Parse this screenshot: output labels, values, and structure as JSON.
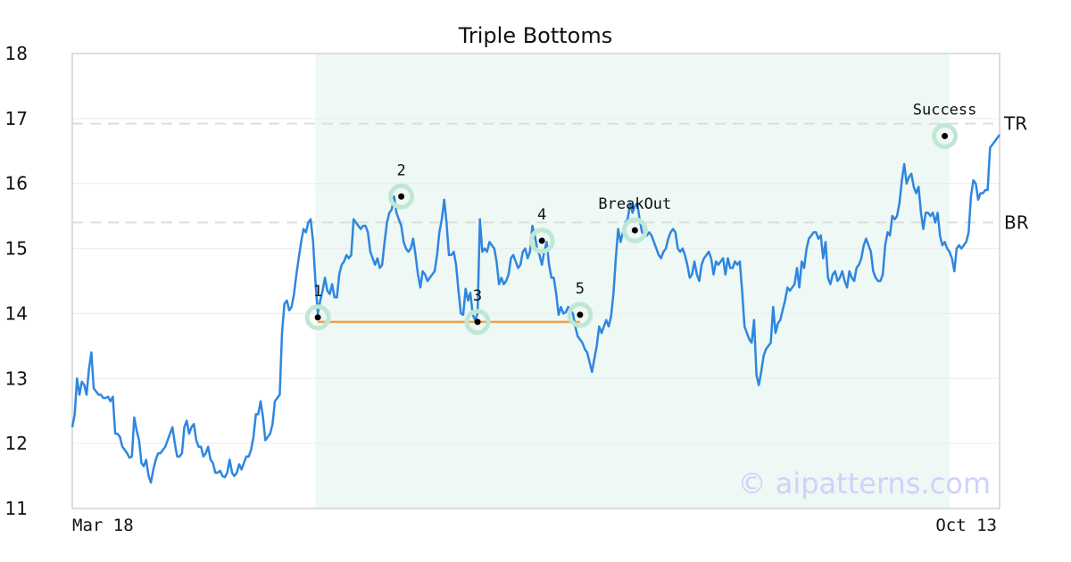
{
  "chart_data": {
    "type": "line",
    "title": "Triple Bottoms",
    "xlabel": "",
    "ylabel": "",
    "x_start_label": "Mar 18",
    "x_end_label": "Oct 13",
    "ylim": [
      11,
      18
    ],
    "yticks": [
      11,
      12,
      13,
      14,
      15,
      16,
      17,
      18
    ],
    "grid": true,
    "series": [
      {
        "values": [
          12.25,
          12.45,
          13.0,
          12.75,
          12.95,
          12.9,
          12.75,
          13.15,
          13.4,
          12.85,
          12.8,
          12.75,
          12.75,
          12.7,
          12.7,
          12.72,
          12.65,
          12.72,
          12.15,
          12.15,
          12.1,
          11.95,
          11.9,
          11.85,
          11.78,
          11.8,
          12.4,
          12.2,
          12.05,
          11.7,
          11.65,
          11.75,
          11.5,
          11.4,
          11.6,
          11.75,
          11.85,
          11.85,
          11.9,
          11.95,
          12.05,
          12.15,
          12.25,
          12.0,
          11.8,
          11.8,
          11.85,
          12.25,
          12.35,
          12.15,
          12.25,
          12.3,
          12.05,
          11.95,
          11.95,
          11.8,
          11.85,
          11.95,
          11.75,
          11.7,
          11.55,
          11.55,
          11.58,
          11.5,
          11.48,
          11.55,
          11.75,
          11.55,
          11.5,
          11.55,
          11.68,
          11.6,
          11.7,
          11.8,
          11.8,
          11.9,
          12.1,
          12.45,
          12.45,
          12.65,
          12.4,
          12.05,
          12.1,
          12.15,
          12.3,
          12.65,
          12.7,
          12.75,
          13.7,
          14.15,
          14.2,
          14.05,
          14.1,
          14.3,
          14.6,
          14.85,
          15.1,
          15.3,
          15.25,
          15.4,
          15.45,
          15.1,
          14.5,
          14.0,
          14.2,
          14.35,
          14.55,
          14.35,
          14.3,
          14.45,
          14.25,
          14.25,
          14.6,
          14.75,
          14.8,
          14.9,
          14.85,
          14.9,
          15.45,
          15.4,
          15.35,
          15.3,
          15.35,
          15.35,
          15.25,
          14.95,
          14.85,
          14.75,
          14.85,
          14.7,
          14.75,
          15.1,
          15.4,
          15.55,
          15.6,
          15.8,
          15.55,
          15.45,
          15.35,
          15.1,
          15.0,
          14.95,
          15.0,
          15.15,
          14.9,
          14.6,
          14.4,
          14.65,
          14.6,
          14.5,
          14.55,
          14.6,
          14.65,
          14.9,
          15.25,
          15.45,
          15.75,
          15.4,
          14.9,
          14.9,
          14.95,
          14.75,
          14.35,
          14.0,
          13.98,
          14.38,
          14.2,
          14.32,
          13.98,
          13.9,
          14.0,
          15.45,
          14.95,
          15.0,
          14.95,
          15.1,
          15.05,
          15.0,
          14.8,
          14.45,
          14.55,
          14.45,
          14.5,
          14.6,
          14.85,
          14.9,
          14.8,
          14.7,
          14.75,
          14.95,
          15.0,
          14.85,
          14.95,
          15.35,
          15.2,
          15.0,
          14.9,
          14.75,
          14.95,
          15.1,
          14.75,
          14.55,
          14.55,
          14.3,
          13.98,
          14.1,
          14.0,
          14.02,
          14.1,
          14.05,
          14.0,
          13.8,
          13.65,
          13.6,
          13.55,
          13.45,
          13.4,
          13.25,
          13.1,
          13.3,
          13.5,
          13.8,
          13.7,
          13.8,
          13.9,
          13.8,
          13.95,
          14.3,
          14.85,
          15.3,
          15.1,
          15.25,
          15.4,
          15.45,
          15.7,
          15.55,
          15.65,
          15.7,
          15.45,
          15.25,
          15.2,
          15.2,
          15.25,
          15.2,
          15.1,
          15.0,
          14.9,
          14.85,
          14.95,
          15.0,
          15.15,
          15.25,
          15.3,
          15.25,
          15.0,
          14.95,
          15.0,
          14.9,
          14.75,
          14.55,
          14.6,
          14.8,
          14.6,
          14.5,
          14.75,
          14.85,
          14.9,
          14.95,
          14.85,
          14.6,
          14.8,
          14.75,
          14.8,
          14.85,
          14.6,
          14.85,
          14.7,
          14.7,
          14.8,
          14.75,
          14.8,
          14.35,
          13.8,
          13.7,
          13.6,
          13.55,
          13.9,
          13.05,
          12.9,
          13.1,
          13.35,
          13.45,
          13.5,
          13.55,
          14.1,
          13.7,
          13.85,
          13.9,
          14.05,
          14.2,
          14.4,
          14.35,
          14.4,
          14.45,
          14.7,
          14.4,
          14.8,
          14.7,
          15.0,
          15.15,
          15.2,
          15.25,
          15.25,
          15.15,
          15.2,
          14.85,
          15.1,
          14.55,
          14.45,
          14.6,
          14.65,
          14.5,
          14.55,
          14.65,
          14.5,
          14.4,
          14.65,
          14.55,
          14.5,
          14.7,
          14.75,
          14.85,
          15.05,
          15.15,
          15.05,
          14.95,
          14.65,
          14.55,
          14.5,
          14.5,
          14.6,
          15.05,
          15.25,
          15.2,
          15.5,
          15.45,
          15.5,
          15.7,
          16.05,
          16.3,
          16.0,
          16.1,
          16.15,
          15.95,
          15.85,
          15.95,
          15.55,
          15.3,
          15.55,
          15.55,
          15.5,
          15.55,
          15.4,
          15.55,
          15.2,
          15.05,
          15.1,
          15.0,
          14.95,
          14.85,
          14.65,
          15.0,
          15.05,
          15.0,
          15.05,
          15.1,
          15.25,
          15.8,
          16.05,
          16.0,
          15.75,
          15.85,
          15.85,
          15.9,
          15.9,
          16.55,
          16.6,
          16.65,
          16.7,
          16.75
        ]
      }
    ],
    "annotations": {
      "points": [
        {
          "label": "1",
          "index": 103,
          "value": 13.94
        },
        {
          "label": "2",
          "index": 138,
          "value": 15.8
        },
        {
          "label": "3",
          "index": 170,
          "value": 13.87
        },
        {
          "label": "4",
          "index": 197,
          "value": 15.12
        },
        {
          "label": "5",
          "index": 213,
          "value": 13.98
        },
        {
          "label": "BreakOut",
          "index": 236,
          "value": 15.28
        },
        {
          "label": "Success",
          "index": 366,
          "value": 16.73
        }
      ],
      "support_line": {
        "from_index": 103,
        "to_index": 213,
        "value": 13.87
      },
      "levels": [
        {
          "label": "TR",
          "value": 16.92
        },
        {
          "label": "BR",
          "value": 15.4
        }
      ],
      "pattern_span": {
        "from_index": 102,
        "to_index": 368
      }
    },
    "watermark": "© aipatterns.com",
    "colors": {
      "line": "#2f86e0",
      "support": "#f0a050",
      "marker_ring": "#bfe8d4",
      "span_fill": "#eef8f4",
      "level_dash": "#dddddd",
      "watermark": "#cfd2fb"
    }
  }
}
